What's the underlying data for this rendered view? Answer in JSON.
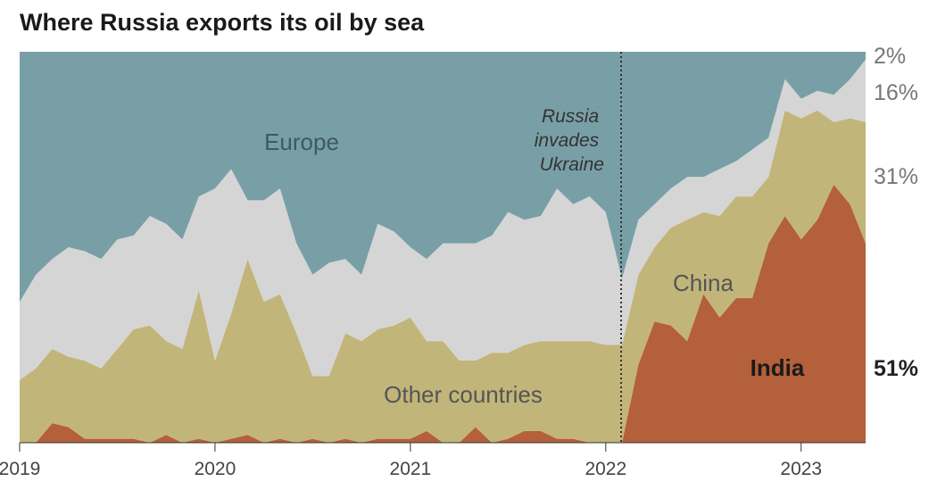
{
  "chart_data": {
    "type": "area",
    "stacked": true,
    "normalized": true,
    "title": "Where Russia exports its oil by sea",
    "xlabel": "",
    "ylabel": "",
    "x_unit": "year (fractional)",
    "xlim": [
      2019.0,
      2023.33
    ],
    "ylim": [
      0,
      100
    ],
    "x_ticks": [
      "2019",
      "2020",
      "2021",
      "2022",
      "2023"
    ],
    "x": [
      2019.0,
      2019.083,
      2019.167,
      2019.25,
      2019.333,
      2019.417,
      2019.5,
      2019.583,
      2019.667,
      2019.75,
      2019.833,
      2019.917,
      2020.0,
      2020.083,
      2020.167,
      2020.25,
      2020.333,
      2020.417,
      2020.5,
      2020.583,
      2020.667,
      2020.75,
      2020.833,
      2020.917,
      2021.0,
      2021.083,
      2021.167,
      2021.25,
      2021.333,
      2021.417,
      2021.5,
      2021.583,
      2021.667,
      2021.75,
      2021.833,
      2021.917,
      2022.0,
      2022.083,
      2022.167,
      2022.25,
      2022.333,
      2022.417,
      2022.5,
      2022.583,
      2022.667,
      2022.75,
      2022.833,
      2022.917,
      2023.0,
      2023.083,
      2023.167,
      2023.25,
      2023.33
    ],
    "series": [
      {
        "name": "India",
        "color": "#b4603a",
        "values": [
          0,
          0,
          5,
          4,
          1,
          1,
          1,
          1,
          0,
          2,
          0,
          1,
          0,
          1,
          2,
          0,
          1,
          0,
          1,
          0,
          1,
          0,
          1,
          1,
          1,
          3,
          0,
          0,
          4,
          0,
          1,
          3,
          3,
          1,
          1,
          0,
          0,
          0,
          20,
          31,
          30,
          26,
          38,
          32,
          37,
          37,
          51,
          58,
          52,
          57,
          66,
          61,
          51
        ]
      },
      {
        "name": "Other countries",
        "color": "#c2b57a",
        "values": [
          16,
          19,
          19,
          18,
          20,
          18,
          23,
          28,
          30,
          24,
          24,
          38,
          21,
          32,
          45,
          36,
          37,
          28,
          16,
          17,
          27,
          26,
          28,
          29,
          31,
          23,
          26,
          21,
          17,
          23,
          22,
          22,
          23,
          25,
          25,
          26,
          25,
          25,
          23,
          19,
          25,
          31,
          21,
          26,
          26,
          26,
          17,
          27,
          31,
          28,
          16,
          22,
          31
        ]
      },
      {
        "name": "China",
        "color": "#d5d5d5",
        "values": [
          20,
          24,
          23,
          28,
          28,
          28,
          28,
          24,
          28,
          30,
          28,
          24,
          44,
          37,
          15,
          26,
          27,
          23,
          26,
          29,
          19,
          17,
          27,
          24,
          18,
          21,
          25,
          30,
          30,
          30,
          36,
          32,
          32,
          39,
          35,
          37,
          34,
          17,
          14,
          11,
          10,
          11,
          9,
          12,
          9,
          12,
          10,
          8,
          5,
          5,
          7,
          10,
          16
        ]
      },
      {
        "name": "Europe",
        "color": "#789fa6",
        "values": [
          64,
          57,
          53,
          50,
          51,
          53,
          48,
          47,
          42,
          44,
          48,
          37,
          35,
          30,
          38,
          38,
          35,
          49,
          57,
          54,
          53,
          57,
          44,
          46,
          50,
          53,
          49,
          49,
          49,
          47,
          41,
          43,
          42,
          35,
          39,
          37,
          41,
          58,
          43,
          39,
          35,
          32,
          32,
          30,
          28,
          25,
          22,
          7,
          12,
          10,
          11,
          7,
          2
        ]
      }
    ],
    "area_labels": [
      "Europe",
      "China",
      "Other countries",
      "India"
    ],
    "end_labels": [
      "2%",
      "16%",
      "31%",
      "51%"
    ],
    "annotations": [
      {
        "x": 2022.083,
        "lines": [
          "Russia",
          "invades",
          "Ukraine"
        ],
        "style": "dotted vertical line"
      }
    ],
    "grid": false,
    "legend": "none (inline labels)"
  }
}
